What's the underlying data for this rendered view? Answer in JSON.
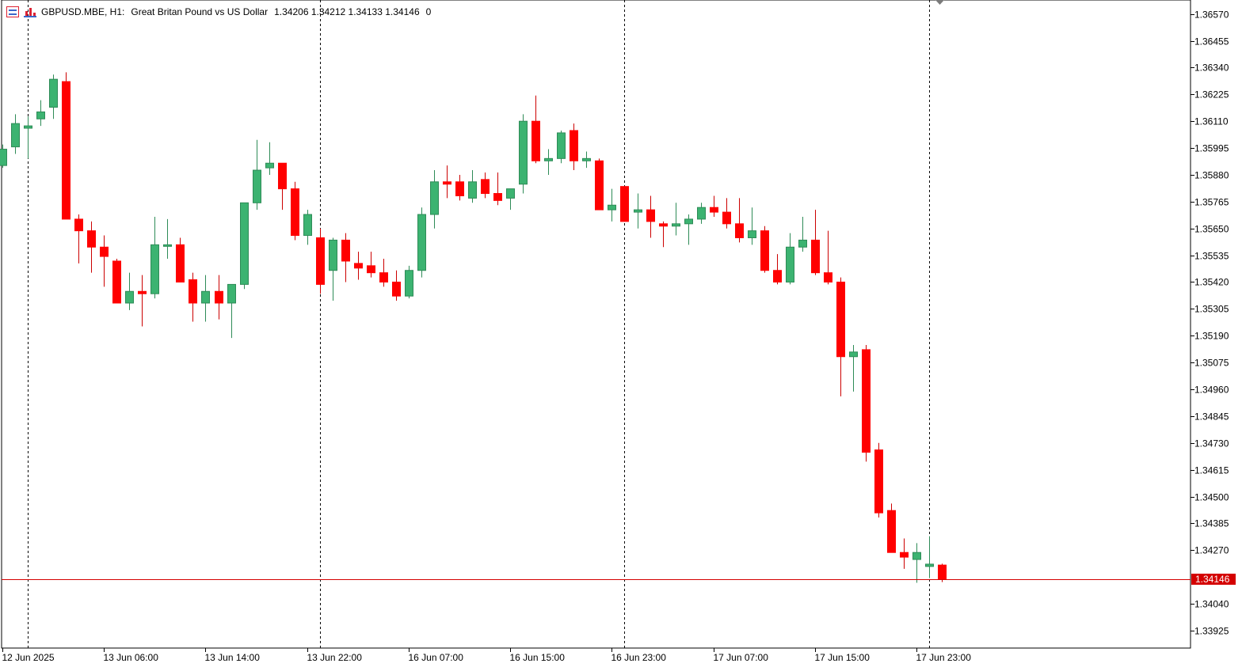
{
  "header": {
    "symbol": "GBPUSD.MBE, H1:",
    "description": "Great Britan Pound vs US Dollar",
    "ohlc": "1.34206 1.34212 1.34133 1.34146",
    "extra": "0",
    "icons": [
      "quotes-list-icon",
      "chart-settings-icon"
    ]
  },
  "colors": {
    "bull": "#3cb371",
    "bear": "#ff0000",
    "wick_bull": "#2e8b57",
    "wick_bear": "#cc0000",
    "current_price_line": "#d40000",
    "axis": "#000000"
  },
  "chart_data": {
    "type": "candlestick",
    "symbol": "GBPUSD.MBE",
    "timeframe": "H1",
    "current_price": 1.34146,
    "y_range": [
      1.3385,
      1.3663
    ],
    "y_ticks": [
      "1.36570",
      "1.36455",
      "1.36340",
      "1.36225",
      "1.36110",
      "1.35995",
      "1.35880",
      "1.35765",
      "1.35650",
      "1.35535",
      "1.35420",
      "1.35305",
      "1.35190",
      "1.35075",
      "1.34960",
      "1.34845",
      "1.34730",
      "1.34615",
      "1.34500",
      "1.34385",
      "1.34270",
      "1.34040",
      "1.33925"
    ],
    "current_price_label": "1.34146",
    "x_labels": [
      "12 Jun 2025",
      "13 Jun 06:00",
      "13 Jun 14:00",
      "13 Jun 22:00",
      "16 Jun 07:00",
      "16 Jun 15:00",
      "16 Jun 23:00",
      "17 Jun 07:00",
      "17 Jun 15:00",
      "17 Jun 23:00"
    ],
    "session_separators": [
      2,
      25,
      49,
      73
    ],
    "candles": [
      [
        1.3592,
        1.3601,
        1.3591,
        1.3599
      ],
      [
        1.36,
        1.3614,
        1.3597,
        1.361
      ],
      [
        1.3608,
        1.3613,
        1.3595,
        1.3609
      ],
      [
        1.3612,
        1.362,
        1.3609,
        1.3615
      ],
      [
        1.3617,
        1.3631,
        1.3612,
        1.3629
      ],
      [
        1.3628,
        1.3632,
        1.357,
        1.3569
      ],
      [
        1.3569,
        1.3571,
        1.355,
        1.3564
      ],
      [
        1.3564,
        1.3568,
        1.3546,
        1.3557
      ],
      [
        1.3557,
        1.3562,
        1.354,
        1.3553
      ],
      [
        1.3551,
        1.3552,
        1.3533,
        1.3533
      ],
      [
        1.3533,
        1.3546,
        1.353,
        1.3538
      ],
      [
        1.3538,
        1.3545,
        1.3523,
        1.3537
      ],
      [
        1.3537,
        1.357,
        1.3535,
        1.3558
      ],
      [
        1.3558,
        1.3569,
        1.3552,
        1.3558
      ],
      [
        1.3558,
        1.3561,
        1.3542,
        1.3542
      ],
      [
        1.3543,
        1.3546,
        1.3525,
        1.3533
      ],
      [
        1.3533,
        1.3545,
        1.3525,
        1.3538
      ],
      [
        1.3538,
        1.3545,
        1.3526,
        1.3533
      ],
      [
        1.3533,
        1.3541,
        1.3518,
        1.3541
      ],
      [
        1.3541,
        1.3575,
        1.3539,
        1.3576
      ],
      [
        1.3576,
        1.3603,
        1.3573,
        1.359
      ],
      [
        1.3591,
        1.3602,
        1.3588,
        1.3593
      ],
      [
        1.3593,
        1.3592,
        1.3573,
        1.3582
      ],
      [
        1.3582,
        1.3585,
        1.356,
        1.3562
      ],
      [
        1.3562,
        1.3573,
        1.3558,
        1.3571
      ],
      [
        1.3561,
        1.3565,
        1.3537,
        1.3541
      ],
      [
        1.3547,
        1.3561,
        1.3534,
        1.356
      ],
      [
        1.356,
        1.3563,
        1.3542,
        1.3551
      ],
      [
        1.355,
        1.3555,
        1.3543,
        1.3548
      ],
      [
        1.3549,
        1.3555,
        1.3544,
        1.3546
      ],
      [
        1.3546,
        1.3552,
        1.354,
        1.3542
      ],
      [
        1.3542,
        1.3547,
        1.3534,
        1.3536
      ],
      [
        1.3536,
        1.3549,
        1.3535,
        1.3547
      ],
      [
        1.3547,
        1.3574,
        1.3544,
        1.3571
      ],
      [
        1.3571,
        1.359,
        1.3565,
        1.3585
      ],
      [
        1.3585,
        1.3592,
        1.3578,
        1.3584
      ],
      [
        1.3585,
        1.3588,
        1.3577,
        1.3579
      ],
      [
        1.3578,
        1.359,
        1.3576,
        1.3585
      ],
      [
        1.3586,
        1.3589,
        1.3578,
        1.358
      ],
      [
        1.358,
        1.3589,
        1.3575,
        1.3577
      ],
      [
        1.3578,
        1.3582,
        1.3573,
        1.3582
      ],
      [
        1.3584,
        1.3614,
        1.358,
        1.3611
      ],
      [
        1.3611,
        1.3622,
        1.3593,
        1.3594
      ],
      [
        1.3594,
        1.3599,
        1.3588,
        1.3595
      ],
      [
        1.3595,
        1.3607,
        1.3593,
        1.3606
      ],
      [
        1.3607,
        1.361,
        1.359,
        1.3594
      ],
      [
        1.3594,
        1.3598,
        1.3591,
        1.3595
      ],
      [
        1.3594,
        1.3595,
        1.3573,
        1.3573
      ],
      [
        1.3573,
        1.3582,
        1.3568,
        1.3575
      ],
      [
        1.3583,
        1.3583,
        1.3568,
        1.3568
      ],
      [
        1.3572,
        1.358,
        1.3565,
        1.3573
      ],
      [
        1.3573,
        1.3579,
        1.3561,
        1.3568
      ],
      [
        1.3567,
        1.3568,
        1.3557,
        1.3566
      ],
      [
        1.3566,
        1.3576,
        1.3562,
        1.3567
      ],
      [
        1.3567,
        1.3571,
        1.3558,
        1.3569
      ],
      [
        1.3569,
        1.3576,
        1.3567,
        1.3574
      ],
      [
        1.3574,
        1.3579,
        1.357,
        1.3572
      ],
      [
        1.3572,
        1.3578,
        1.3565,
        1.3567
      ],
      [
        1.3567,
        1.3578,
        1.3559,
        1.3561
      ],
      [
        1.3561,
        1.3574,
        1.3558,
        1.3564
      ],
      [
        1.3564,
        1.3566,
        1.3546,
        1.3547
      ],
      [
        1.3547,
        1.3554,
        1.3541,
        1.3542
      ],
      [
        1.3542,
        1.3563,
        1.3541,
        1.3557
      ],
      [
        1.3557,
        1.357,
        1.3555,
        1.356
      ],
      [
        1.356,
        1.3573,
        1.3545,
        1.3546
      ],
      [
        1.3546,
        1.3564,
        1.3541,
        1.3542
      ],
      [
        1.3542,
        1.3544,
        1.3493,
        1.351
      ],
      [
        1.351,
        1.3515,
        1.3495,
        1.3512
      ],
      [
        1.3513,
        1.3515,
        1.3465,
        1.3469
      ],
      [
        1.347,
        1.3473,
        1.3441,
        1.3443
      ],
      [
        1.3444,
        1.3447,
        1.3426,
        1.3426
      ],
      [
        1.3426,
        1.3432,
        1.3419,
        1.3424
      ],
      [
        1.3423,
        1.343,
        1.3413,
        1.3426
      ],
      [
        1.342,
        1.3433,
        1.3415,
        1.3421
      ],
      [
        1.34206,
        1.34212,
        1.34133,
        1.34146
      ]
    ]
  }
}
